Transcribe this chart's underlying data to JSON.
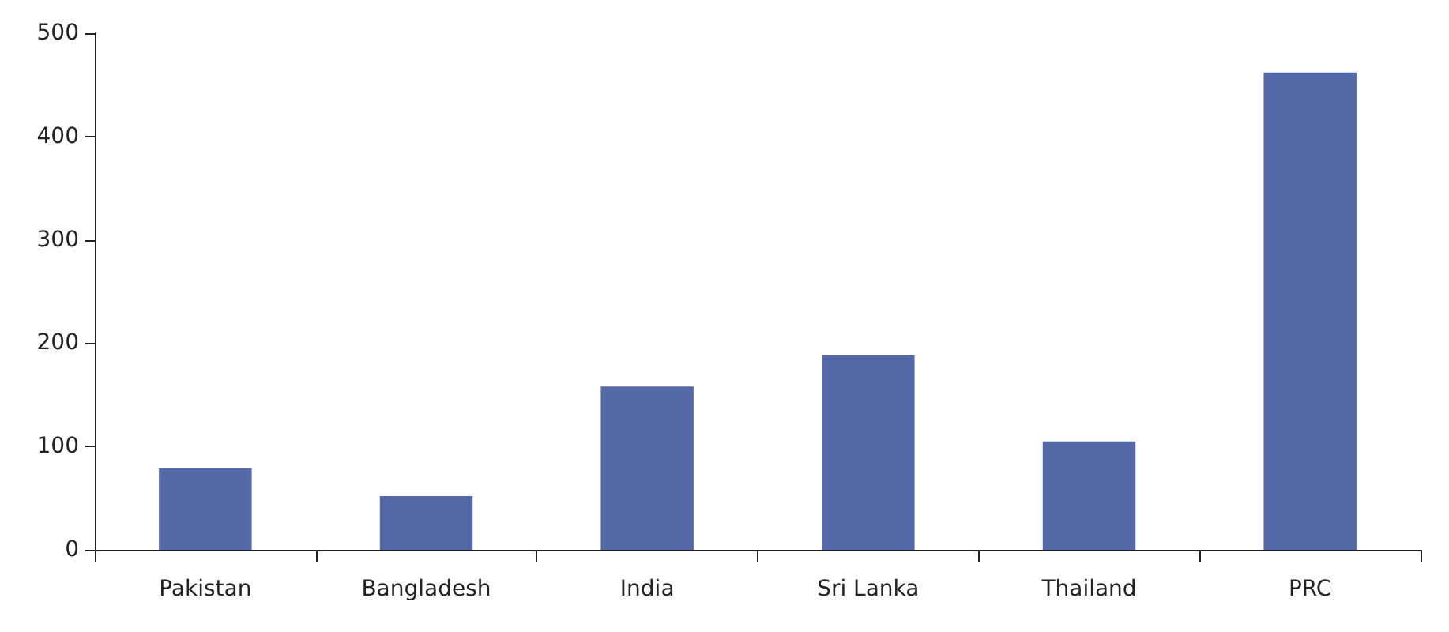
{
  "chart_data": {
    "type": "bar",
    "categories": [
      "Pakistan",
      "Bangladesh",
      "India",
      "Sri Lanka",
      "Thailand",
      "PRC"
    ],
    "values": [
      79,
      52,
      158,
      188,
      105,
      462
    ],
    "color": "#5568a8",
    "ylim": [
      0,
      500
    ],
    "yticks": [
      0,
      100,
      200,
      300,
      400,
      500
    ],
    "grid": false
  }
}
